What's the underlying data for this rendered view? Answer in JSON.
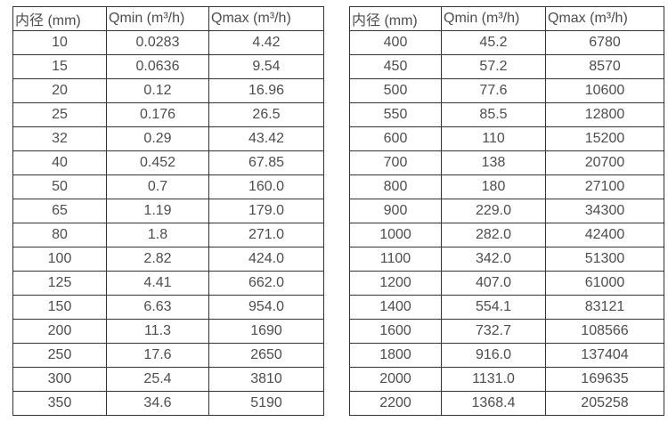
{
  "chart_data": [
    {
      "type": "table",
      "name": "flow-range-small-diameters",
      "columns": [
        "内径 (mm)",
        "Qmin (m³/h)",
        "Qmax (m³/h)"
      ],
      "rows": [
        [
          "10",
          "0.0283",
          "4.42"
        ],
        [
          "15",
          "0.0636",
          "9.54"
        ],
        [
          "20",
          "0.12",
          "16.96"
        ],
        [
          "25",
          "0.176",
          "26.5"
        ],
        [
          "32",
          "0.29",
          "43.42"
        ],
        [
          "40",
          "0.452",
          "67.85"
        ],
        [
          "50",
          "0.7",
          "160.0"
        ],
        [
          "65",
          "1.19",
          "179.0"
        ],
        [
          "80",
          "1.8",
          "271.0"
        ],
        [
          "100",
          "2.82",
          "424.0"
        ],
        [
          "125",
          "4.41",
          "662.0"
        ],
        [
          "150",
          "6.63",
          "954.0"
        ],
        [
          "200",
          "11.3",
          "1690"
        ],
        [
          "250",
          "17.6",
          "2650"
        ],
        [
          "300",
          "25.4",
          "3810"
        ],
        [
          "350",
          "34.6",
          "5190"
        ]
      ]
    },
    {
      "type": "table",
      "name": "flow-range-large-diameters",
      "columns": [
        "内径 (mm)",
        "Qmin (m³/h)",
        "Qmax (m³/h)"
      ],
      "rows": [
        [
          "400",
          "45.2",
          "6780"
        ],
        [
          "450",
          "57.2",
          "8570"
        ],
        [
          "500",
          "77.6",
          "10600"
        ],
        [
          "550",
          "85.5",
          "12800"
        ],
        [
          "600",
          "110",
          "15200"
        ],
        [
          "700",
          "138",
          "20700"
        ],
        [
          "800",
          "180",
          "27100"
        ],
        [
          "900",
          "229.0",
          "34300"
        ],
        [
          "1000",
          "282.0",
          "42400"
        ],
        [
          "1100",
          "342.0",
          "51300"
        ],
        [
          "1200",
          "407.0",
          "61000"
        ],
        [
          "1400",
          "554.1",
          "83121"
        ],
        [
          "1600",
          "732.7",
          "108566"
        ],
        [
          "1800",
          "916.0",
          "137404"
        ],
        [
          "2000",
          "1131.0",
          "169635"
        ],
        [
          "2200",
          "1368.4",
          "205258"
        ]
      ]
    }
  ],
  "colors": {
    "text": "#4d4d4d",
    "border": "#333333",
    "background": "#ffffff"
  }
}
